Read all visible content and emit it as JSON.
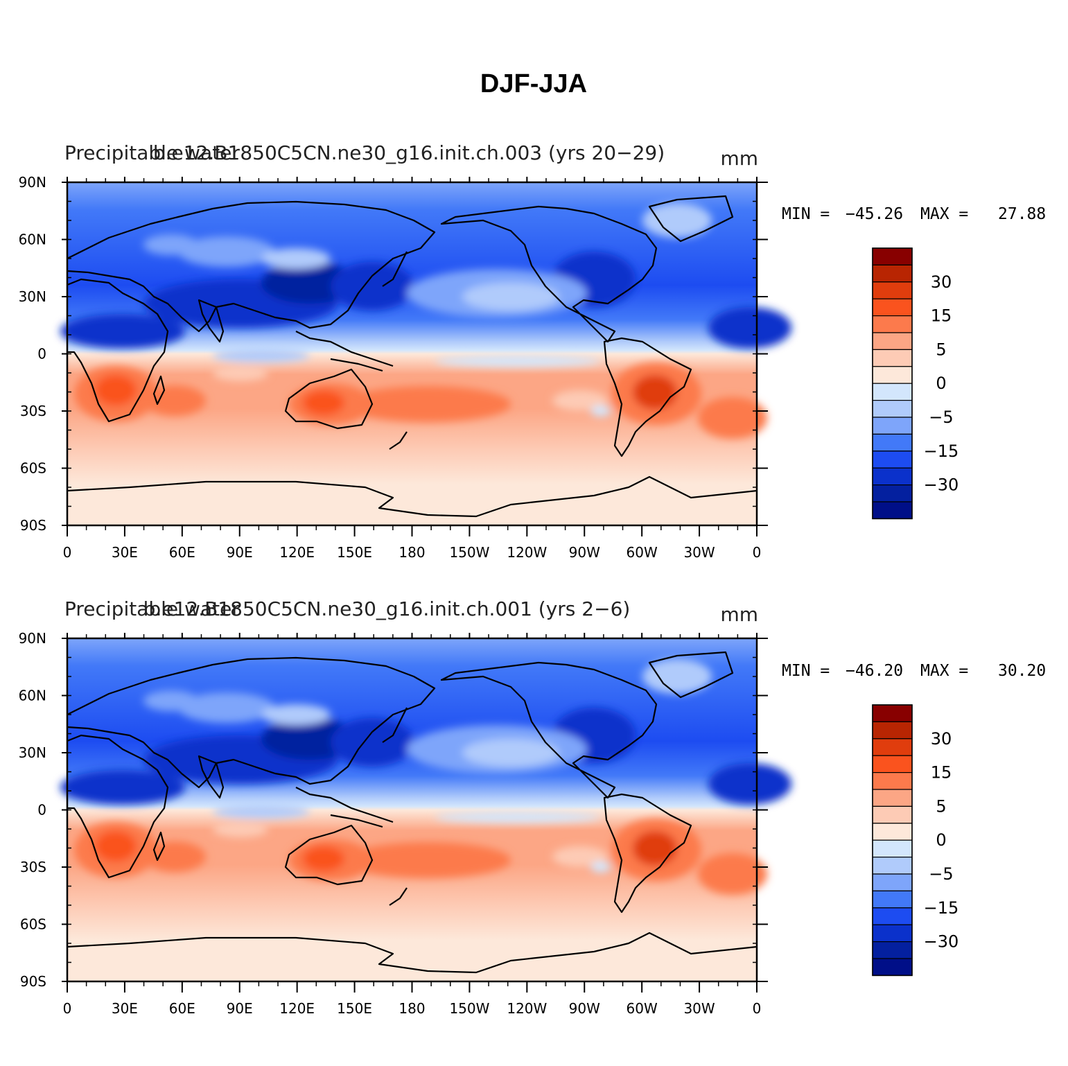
{
  "figure": {
    "title": "DJF-JJA"
  },
  "chart_data": [
    {
      "type": "heatmap",
      "left_title": "Precipitable water",
      "center_title": "b.e12.B1850C5CN.ne30_g16.init.ch.003 (yrs 20-29)",
      "units": "mm",
      "stats": {
        "min_label": "MIN =",
        "min_value": "-45.26",
        "max_label": "MAX =",
        "max_value": "27.88"
      },
      "lat_ticks": [
        "90N",
        "60N",
        "30N",
        "0",
        "30S",
        "60S",
        "90S"
      ],
      "lon_ticks": [
        "0",
        "30E",
        "60E",
        "90E",
        "120E",
        "150E",
        "180",
        "150W",
        "120W",
        "90W",
        "60W",
        "30W",
        "0"
      ],
      "xlim": [
        0,
        360
      ],
      "ylim": [
        -90,
        90
      ]
    },
    {
      "type": "heatmap",
      "left_title": "Precipitable water",
      "center_title": "b.e12.B1850C5CN.ne30_g16.init.ch.001 (yrs 2-6)",
      "units": "mm",
      "stats": {
        "min_label": "MIN =",
        "min_value": "-46.20",
        "max_label": "MAX =",
        "max_value": "30.20"
      },
      "lat_ticks": [
        "90N",
        "60N",
        "30N",
        "0",
        "30S",
        "60S",
        "90S"
      ],
      "lon_ticks": [
        "0",
        "30E",
        "60E",
        "90E",
        "120E",
        "150E",
        "180",
        "150W",
        "120W",
        "90W",
        "60W",
        "30W",
        "0"
      ],
      "xlim": [
        0,
        360
      ],
      "ylim": [
        -90,
        90
      ]
    }
  ],
  "colorbar": {
    "labels": [
      "30",
      "15",
      "5",
      "0",
      "-5",
      "-15",
      "-30"
    ],
    "colors": [
      "#880000",
      "#b82502",
      "#e03d0d",
      "#fa531e",
      "#fc7a4c",
      "#fca685",
      "#fdcbb5",
      "#fde8da",
      "#d3e6fc",
      "#b0cbfb",
      "#7ea5fa",
      "#4279f8",
      "#1d4cf1",
      "#0b31cb",
      "#04209f",
      "#000f88"
    ]
  },
  "colors": {
    "axis": "#000000",
    "coast": "#000000"
  }
}
